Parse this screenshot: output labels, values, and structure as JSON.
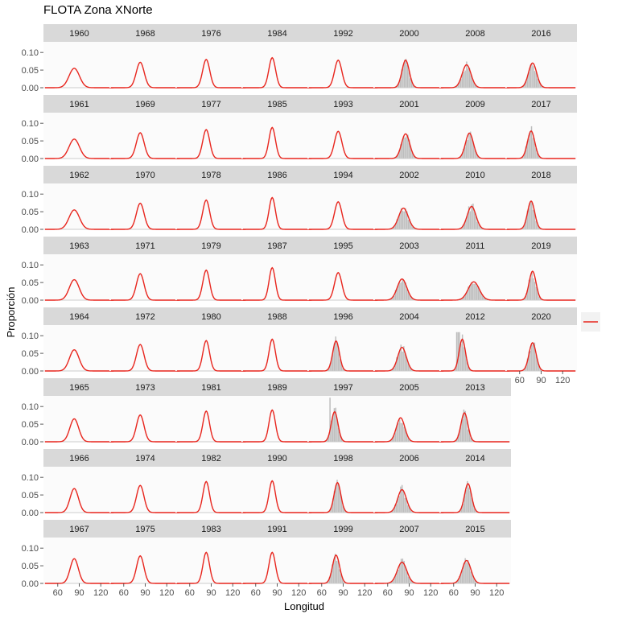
{
  "chart_data": {
    "type": "faceted-histogram-with-density",
    "title": "FLOTA Zona XNorte",
    "xlabel": "Longitud",
    "ylabel": "Proporción",
    "xlim": [
      40,
      140
    ],
    "ylim": [
      0,
      0.13
    ],
    "x_ticks": [
      60,
      90,
      120
    ],
    "y_ticks": [
      0,
      0.05,
      0.1
    ],
    "y_tick_labels": [
      "0.00",
      "0.05",
      "0.10"
    ],
    "facet_columns": [
      [
        "1960",
        "1961",
        "1962",
        "1963",
        "1964",
        "1965",
        "1966",
        "1967"
      ],
      [
        "1968",
        "1969",
        "1970",
        "1971",
        "1972",
        "1973",
        "1974",
        "1975"
      ],
      [
        "1976",
        "1977",
        "1978",
        "1979",
        "1980",
        "1981",
        "1982",
        "1983"
      ],
      [
        "1984",
        "1985",
        "1986",
        "1987",
        "1988",
        "1989",
        "1990",
        "1991"
      ],
      [
        "1992",
        "1993",
        "1994",
        "1995",
        "1996",
        "1997",
        "1998",
        "1999"
      ],
      [
        "2000",
        "2001",
        "2002",
        "2003",
        "2004",
        "2005",
        "2006",
        "2007"
      ],
      [
        "2008",
        "2009",
        "2010",
        "2011",
        "2012",
        "2013",
        "2014",
        "2015"
      ],
      [
        "2016",
        "2017",
        "2018",
        "2019",
        "2020"
      ]
    ],
    "density_curves": {
      "1960": {
        "mean": 83,
        "peak": 0.055
      },
      "1961": {
        "mean": 83,
        "peak": 0.055
      },
      "1962": {
        "mean": 83,
        "peak": 0.055
      },
      "1963": {
        "mean": 83,
        "peak": 0.058
      },
      "1964": {
        "mean": 83,
        "peak": 0.06
      },
      "1965": {
        "mean": 83,
        "peak": 0.065
      },
      "1966": {
        "mean": 83,
        "peak": 0.068
      },
      "1967": {
        "mean": 83,
        "peak": 0.07
      },
      "1968": {
        "mean": 83,
        "peak": 0.072
      },
      "1969": {
        "mean": 83,
        "peak": 0.073
      },
      "1970": {
        "mean": 83,
        "peak": 0.074
      },
      "1971": {
        "mean": 83,
        "peak": 0.075
      },
      "1972": {
        "mean": 83,
        "peak": 0.075
      },
      "1973": {
        "mean": 83,
        "peak": 0.076
      },
      "1974": {
        "mean": 83,
        "peak": 0.077
      },
      "1975": {
        "mean": 83,
        "peak": 0.078
      },
      "1976": {
        "mean": 83,
        "peak": 0.08
      },
      "1977": {
        "mean": 83,
        "peak": 0.082
      },
      "1978": {
        "mean": 83,
        "peak": 0.083
      },
      "1979": {
        "mean": 83,
        "peak": 0.085
      },
      "1980": {
        "mean": 83,
        "peak": 0.086
      },
      "1981": {
        "mean": 83,
        "peak": 0.087
      },
      "1982": {
        "mean": 83,
        "peak": 0.088
      },
      "1983": {
        "mean": 83,
        "peak": 0.088
      },
      "1984": {
        "mean": 83,
        "peak": 0.085
      },
      "1985": {
        "mean": 83,
        "peak": 0.088
      },
      "1986": {
        "mean": 83,
        "peak": 0.09
      },
      "1987": {
        "mean": 83,
        "peak": 0.092
      },
      "1988": {
        "mean": 83,
        "peak": 0.09
      },
      "1989": {
        "mean": 83,
        "peak": 0.09
      },
      "1990": {
        "mean": 83,
        "peak": 0.09
      },
      "1991": {
        "mean": 83,
        "peak": 0.088
      },
      "1992": {
        "mean": 83,
        "peak": 0.078
      },
      "1993": {
        "mean": 83,
        "peak": 0.077
      },
      "1994": {
        "mean": 83,
        "peak": 0.078
      },
      "1995": {
        "mean": 83,
        "peak": 0.078
      },
      "1996": {
        "mean": 80,
        "peak": 0.085
      },
      "1997": {
        "mean": 78,
        "peak": 0.085
      },
      "1998": {
        "mean": 82,
        "peak": 0.085
      },
      "1999": {
        "mean": 80,
        "peak": 0.08
      },
      "2000": {
        "mean": 85,
        "peak": 0.078
      },
      "2001": {
        "mean": 85,
        "peak": 0.07
      },
      "2002": {
        "mean": 82,
        "peak": 0.06
      },
      "2003": {
        "mean": 80,
        "peak": 0.06
      },
      "2004": {
        "mean": 80,
        "peak": 0.067
      },
      "2005": {
        "mean": 78,
        "peak": 0.068
      },
      "2006": {
        "mean": 80,
        "peak": 0.065
      },
      "2007": {
        "mean": 80,
        "peak": 0.06
      },
      "2008": {
        "mean": 78,
        "peak": 0.065
      },
      "2009": {
        "mean": 82,
        "peak": 0.072
      },
      "2010": {
        "mean": 85,
        "peak": 0.065
      },
      "2011": {
        "mean": 88,
        "peak": 0.052
      },
      "2012": {
        "mean": 72,
        "peak": 0.09
      },
      "2013": {
        "mean": 75,
        "peak": 0.082
      },
      "2014": {
        "mean": 80,
        "peak": 0.082
      },
      "2015": {
        "mean": 78,
        "peak": 0.065
      },
      "2016": {
        "mean": 78,
        "peak": 0.07
      },
      "2017": {
        "mean": 76,
        "peak": 0.078
      },
      "2018": {
        "mean": 76,
        "peak": 0.08
      },
      "2019": {
        "mean": 78,
        "peak": 0.082
      },
      "2020": {
        "mean": 78,
        "peak": 0.08
      }
    },
    "histogram_years": [
      "1996",
      "1997",
      "1998",
      "1999",
      "2000",
      "2001",
      "2002",
      "2003",
      "2004",
      "2005",
      "2006",
      "2007",
      "2008",
      "2009",
      "2010",
      "2011",
      "2012",
      "2013",
      "2014",
      "2015",
      "2016",
      "2017",
      "2018",
      "2019",
      "2020"
    ],
    "colors": {
      "density": "#e8251d",
      "bars": "#bdbdbd",
      "strip": "#d9d9d9",
      "panel": "#fbfbfb",
      "legend_key": "#f2f2f2",
      "axis_text": "#4d4d4d"
    },
    "legend": {
      "position": "right",
      "entries": [
        ""
      ]
    }
  }
}
